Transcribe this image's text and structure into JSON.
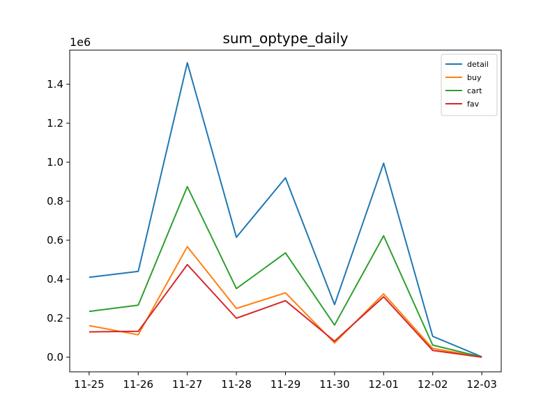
{
  "chart_data": {
    "type": "line",
    "title": "sum_optype_daily",
    "xlabel": "",
    "ylabel": "",
    "y_scale_label": "1e6",
    "categories": [
      "11-25",
      "11-26",
      "11-27",
      "11-28",
      "11-29",
      "11-30",
      "12-01",
      "12-02",
      "12-03"
    ],
    "ylim": [
      -0.075,
      1.575
    ],
    "yticks": [
      0.0,
      0.2,
      0.4,
      0.6,
      0.8,
      1.0,
      1.2,
      1.4
    ],
    "ytick_labels": [
      "0.0",
      "0.2",
      "0.4",
      "0.6",
      "0.8",
      "1.0",
      "1.2",
      "1.4"
    ],
    "grid": false,
    "legend_position": "top-right",
    "series": [
      {
        "name": "detail",
        "color": "#1f77b4",
        "values": [
          0.41,
          0.44,
          1.51,
          0.615,
          0.92,
          0.27,
          0.995,
          0.107,
          0.002
        ]
      },
      {
        "name": "buy",
        "color": "#ff7f0e",
        "values": [
          0.162,
          0.115,
          0.567,
          0.25,
          0.33,
          0.073,
          0.325,
          0.045,
          0.001
        ]
      },
      {
        "name": "cart",
        "color": "#2ca02c",
        "values": [
          0.235,
          0.267,
          0.875,
          0.352,
          0.535,
          0.165,
          0.623,
          0.062,
          0.001
        ]
      },
      {
        "name": "fav",
        "color": "#d62728",
        "values": [
          0.13,
          0.133,
          0.475,
          0.2,
          0.29,
          0.082,
          0.31,
          0.035,
          0.0
        ]
      }
    ]
  }
}
